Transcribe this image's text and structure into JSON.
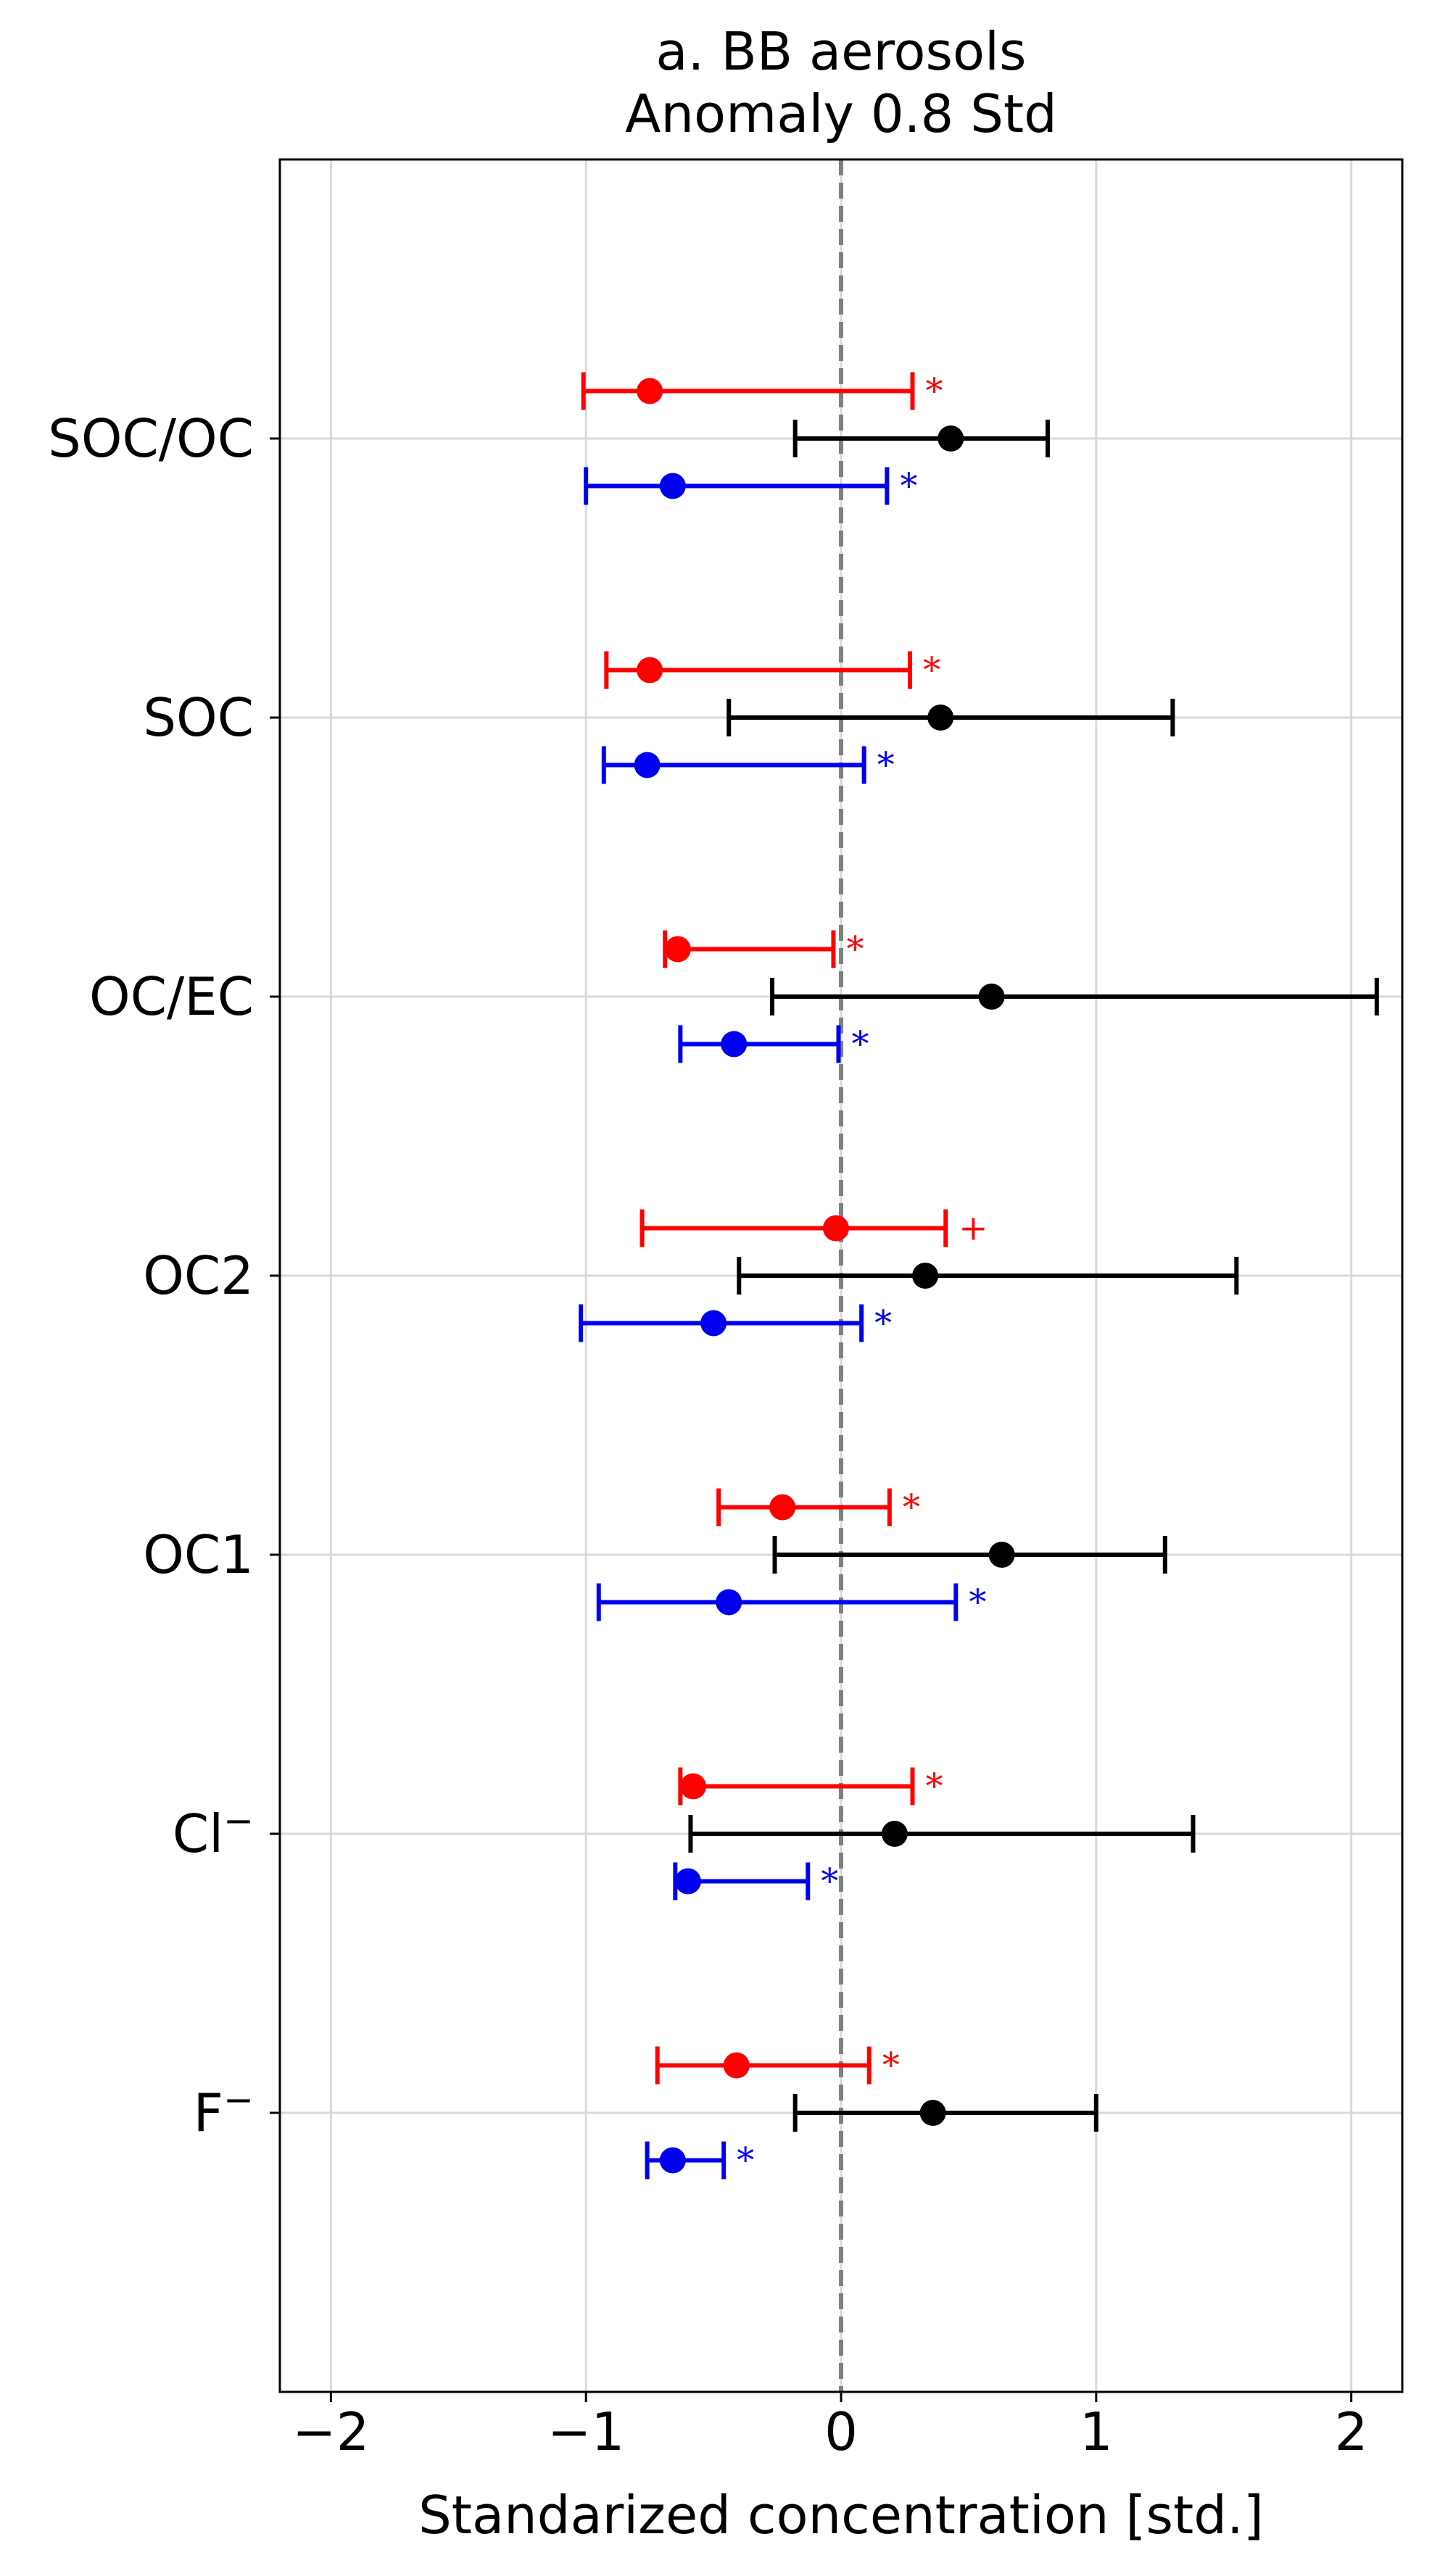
{
  "chart_data": {
    "type": "errorbar",
    "title_line1": "a. BB aerosols",
    "title_line2": "Anomaly 0.8 Std",
    "xlabel": "Standarized concentration [std.]",
    "xlim": [
      -2.2,
      2.2
    ],
    "ylim": [
      -1,
      7.0
    ],
    "xticks": [
      -2,
      -1,
      0,
      1,
      2
    ],
    "xtick_labels": [
      "−2",
      "−1",
      "0",
      "1",
      "2"
    ],
    "reference_line_x": 0,
    "grid": true,
    "categories": [
      {
        "label": "SOC/OC",
        "sup": ""
      },
      {
        "label": "SOC",
        "sup": ""
      },
      {
        "label": "OC/EC",
        "sup": ""
      },
      {
        "label": "OC2",
        "sup": ""
      },
      {
        "label": "OC1",
        "sup": ""
      },
      {
        "label": "Cl",
        "sup": "−"
      },
      {
        "label": "F",
        "sup": "−"
      }
    ],
    "colors": {
      "red": "#ff0000",
      "black": "#000000",
      "blue": "#0000ee"
    },
    "series": [
      {
        "color_key": "red",
        "offset": 0.17,
        "points": [
          {
            "center": -0.75,
            "low": -1.01,
            "high": 0.28,
            "sig": "*"
          },
          {
            "center": -0.75,
            "low": -0.92,
            "high": 0.27,
            "sig": "*"
          },
          {
            "center": -0.64,
            "low": -0.69,
            "high": -0.03,
            "sig": "*"
          },
          {
            "center": -0.02,
            "low": -0.78,
            "high": 0.41,
            "sig": "+"
          },
          {
            "center": -0.23,
            "low": -0.48,
            "high": 0.19,
            "sig": "*"
          },
          {
            "center": -0.58,
            "low": -0.63,
            "high": 0.28,
            "sig": "*"
          },
          {
            "center": -0.41,
            "low": -0.72,
            "high": 0.11,
            "sig": "*"
          }
        ]
      },
      {
        "color_key": "black",
        "offset": 0,
        "points": [
          {
            "center": 0.43,
            "low": -0.18,
            "high": 0.81,
            "sig": ""
          },
          {
            "center": 0.39,
            "low": -0.44,
            "high": 1.3,
            "sig": ""
          },
          {
            "center": 0.59,
            "low": -0.27,
            "high": 2.1,
            "sig": ""
          },
          {
            "center": 0.33,
            "low": -0.4,
            "high": 1.55,
            "sig": ""
          },
          {
            "center": 0.63,
            "low": -0.26,
            "high": 1.27,
            "sig": ""
          },
          {
            "center": 0.21,
            "low": -0.59,
            "high": 1.38,
            "sig": ""
          },
          {
            "center": 0.36,
            "low": -0.18,
            "high": 1.0,
            "sig": ""
          }
        ]
      },
      {
        "color_key": "blue",
        "offset": -0.17,
        "points": [
          {
            "center": -0.66,
            "low": -1.0,
            "high": 0.18,
            "sig": "*"
          },
          {
            "center": -0.76,
            "low": -0.93,
            "high": 0.09,
            "sig": "*"
          },
          {
            "center": -0.42,
            "low": -0.63,
            "high": -0.01,
            "sig": "*"
          },
          {
            "center": -0.5,
            "low": -1.02,
            "high": 0.08,
            "sig": "*"
          },
          {
            "center": -0.44,
            "low": -0.95,
            "high": 0.45,
            "sig": "*"
          },
          {
            "center": -0.6,
            "low": -0.65,
            "high": -0.13,
            "sig": "*"
          },
          {
            "center": -0.66,
            "low": -0.76,
            "high": -0.46,
            "sig": "*"
          }
        ]
      }
    ]
  }
}
